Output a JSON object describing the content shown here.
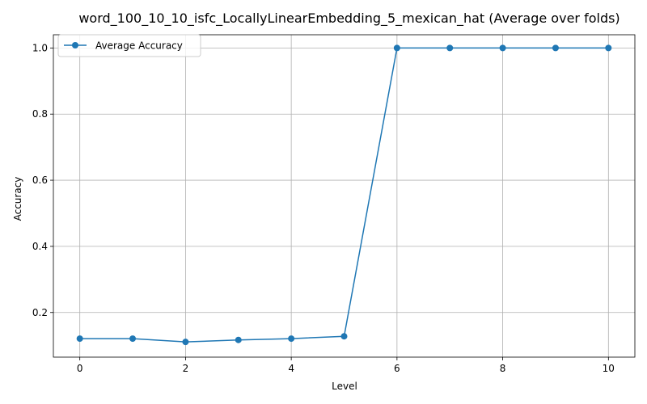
{
  "chart_data": {
    "type": "line",
    "title": "word_100_10_10_isfc_LocallyLinearEmbedding_5_mexican_hat (Average over folds)",
    "xlabel": "Level",
    "ylabel": "Accuracy",
    "xlim": [
      -0.5,
      10.5
    ],
    "ylim": [
      0.065,
      1.04
    ],
    "xticks": [
      0,
      2,
      4,
      6,
      8,
      10
    ],
    "xtick_labels": [
      "0",
      "2",
      "4",
      "6",
      "8",
      "10"
    ],
    "yticks": [
      0.2,
      0.4,
      0.6,
      0.8,
      1.0
    ],
    "ytick_labels": [
      "0.2",
      "0.4",
      "0.6",
      "0.8",
      "1.0"
    ],
    "grid": true,
    "legend_position": "upper left",
    "series": [
      {
        "name": "Average Accuracy",
        "color": "#1f77b4",
        "marker": "circle",
        "x": [
          0,
          1,
          2,
          3,
          4,
          5,
          6,
          7,
          8,
          9,
          10
        ],
        "y": [
          0.121,
          0.121,
          0.111,
          0.117,
          0.121,
          0.128,
          1.0,
          1.0,
          1.0,
          1.0,
          1.0
        ]
      }
    ]
  }
}
